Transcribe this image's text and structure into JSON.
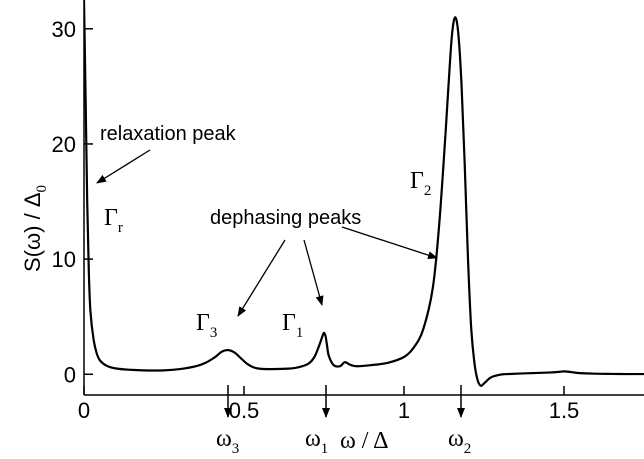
{
  "chart_data": {
    "type": "line",
    "xlabel": "ω / Δ",
    "ylabel_main": "S(ω) / Δ",
    "ylabel_sub": "0",
    "xlim": [
      0,
      1.75
    ],
    "ylim": [
      -1.8,
      32.5
    ],
    "x_ticks": [
      {
        "value": 0,
        "label": "0"
      },
      {
        "value": 0.5,
        "label": "0.5"
      },
      {
        "value": 1,
        "label": "1"
      },
      {
        "value": 1.5,
        "label": "1.5"
      }
    ],
    "y_ticks": [
      {
        "value": 0,
        "label": "0"
      },
      {
        "value": 10,
        "label": "10"
      },
      {
        "value": 20,
        "label": "20"
      },
      {
        "value": 30,
        "label": "30"
      }
    ],
    "grid": false,
    "series": [
      {
        "color": "#000000",
        "x": [
          0.0,
          0.005,
          0.01,
          0.015,
          0.02,
          0.03,
          0.04,
          0.05,
          0.07,
          0.1,
          0.15,
          0.2,
          0.25,
          0.3,
          0.35,
          0.38,
          0.41,
          0.43,
          0.45,
          0.47,
          0.49,
          0.51,
          0.53,
          0.55,
          0.58,
          0.62,
          0.66,
          0.7,
          0.72,
          0.735,
          0.745,
          0.75,
          0.755,
          0.76,
          0.765,
          0.78,
          0.8,
          0.815,
          0.83,
          0.85,
          0.9,
          0.95,
          1.0,
          1.03,
          1.06,
          1.09,
          1.11,
          1.13,
          1.14,
          1.15,
          1.16,
          1.17,
          1.18,
          1.19,
          1.2,
          1.21,
          1.22,
          1.23,
          1.24,
          1.25,
          1.27,
          1.29,
          1.31,
          1.35,
          1.4,
          1.45,
          1.48,
          1.5,
          1.52,
          1.55,
          1.6,
          1.65,
          1.7,
          1.75
        ],
        "y": [
          32.5,
          24.0,
          15.0,
          9.0,
          5.5,
          3.0,
          1.8,
          1.2,
          0.75,
          0.5,
          0.38,
          0.33,
          0.34,
          0.45,
          0.7,
          1.0,
          1.5,
          1.95,
          2.1,
          1.9,
          1.4,
          0.9,
          0.6,
          0.48,
          0.45,
          0.47,
          0.55,
          0.9,
          1.5,
          2.5,
          3.3,
          3.6,
          3.3,
          2.4,
          1.6,
          0.8,
          0.7,
          1.05,
          0.85,
          0.7,
          0.8,
          1.0,
          1.5,
          2.3,
          3.9,
          7.5,
          13.0,
          21.0,
          25.5,
          29.5,
          31.0,
          29.5,
          25.0,
          18.0,
          10.0,
          4.0,
          1.0,
          -0.5,
          -1.0,
          -0.8,
          -0.3,
          -0.1,
          0.0,
          0.05,
          0.1,
          0.15,
          0.2,
          0.25,
          0.2,
          0.1,
          0.05,
          0.03,
          0.02,
          0.02
        ]
      }
    ],
    "annotations": {
      "relaxation_peak": "relaxation peak",
      "dephasing_peaks": "dephasing peaks",
      "gamma_r": {
        "main": "Γ",
        "sub": "r"
      },
      "gamma_1": {
        "main": "Γ",
        "sub": "1"
      },
      "gamma_2": {
        "main": "Γ",
        "sub": "2"
      },
      "gamma_3": {
        "main": "Γ",
        "sub": "3"
      },
      "omega_1": {
        "main": "ω",
        "sub": "1"
      },
      "omega_2": {
        "main": "ω",
        "sub": "2"
      },
      "omega_3": {
        "main": "ω",
        "sub": "3"
      }
    }
  }
}
